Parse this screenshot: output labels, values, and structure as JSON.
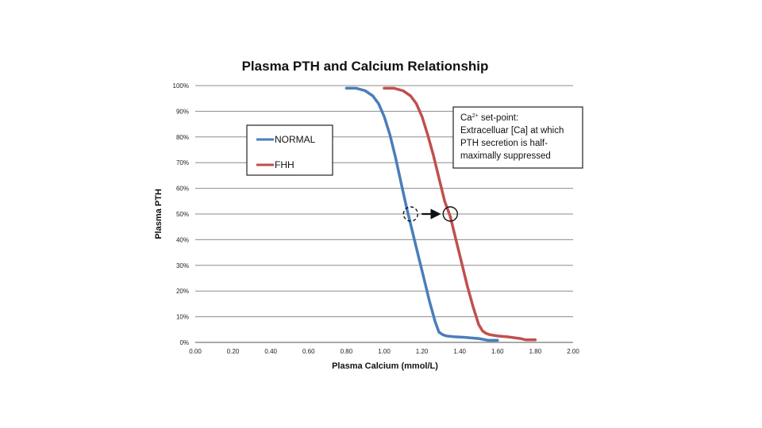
{
  "chart_data": {
    "type": "line",
    "title": "Plasma PTH and Calcium Relationship",
    "xlabel": "Plasma Calcium (mmol/L)",
    "ylabel": "Plasma PTH",
    "xlim": [
      0.0,
      2.0
    ],
    "ylim": [
      0,
      100
    ],
    "x_ticks": [
      "0.00",
      "0.20",
      "0.40",
      "0.60",
      "0.80",
      "1.00",
      "1.20",
      "1.40",
      "1.60",
      "1.80",
      "2.00"
    ],
    "y_ticks": [
      "0%",
      "10%",
      "20%",
      "30%",
      "40%",
      "50%",
      "60%",
      "70%",
      "80%",
      "90%",
      "100%"
    ],
    "grid": "horizontal",
    "legend_position": "upper-left",
    "series": [
      {
        "name": "NORMAL",
        "color": "#4a7ebb",
        "x": [
          0.8,
          0.85,
          0.9,
          0.94,
          0.97,
          1.0,
          1.03,
          1.06,
          1.09,
          1.12,
          1.15,
          1.18,
          1.21,
          1.24,
          1.27,
          1.29,
          1.31,
          1.33,
          1.37,
          1.42,
          1.5,
          1.55,
          1.6
        ],
        "y": [
          99,
          99,
          98,
          96,
          93,
          88,
          81,
          72,
          62,
          52,
          43,
          34,
          25,
          16,
          8,
          4,
          3,
          2.5,
          2.2,
          2,
          1.5,
          0.8,
          0.8
        ]
      },
      {
        "name": "FHH",
        "color": "#c0504d",
        "x": [
          1.0,
          1.05,
          1.1,
          1.14,
          1.17,
          1.2,
          1.23,
          1.26,
          1.29,
          1.32,
          1.35,
          1.38,
          1.41,
          1.44,
          1.47,
          1.5,
          1.52,
          1.54,
          1.56,
          1.6,
          1.65,
          1.72,
          1.75,
          1.78,
          1.8
        ],
        "y": [
          99,
          99,
          98,
          96,
          93,
          88,
          81,
          73,
          64,
          55,
          49,
          40,
          31,
          22,
          14,
          7,
          4.5,
          3.5,
          3,
          2.5,
          2.2,
          1.5,
          1,
          1,
          1
        ]
      }
    ],
    "annotations": {
      "setpoint_normal": {
        "x": 1.14,
        "y": 50
      },
      "setpoint_fhh": {
        "x": 1.35,
        "y": 50
      },
      "box_line1": "Ca",
      "box_line1_sup": "2+",
      "box_line1_rest": " set-point:",
      "box_line2": "Extracelluar [Ca] at which",
      "box_line3": "PTH secretion is half-",
      "box_line4": "maximally suppressed"
    }
  }
}
